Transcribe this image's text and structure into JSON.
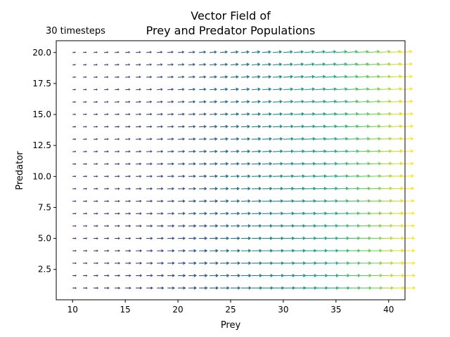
{
  "chart_data": {
    "type": "quiver",
    "title": "Vector Field of\nPrey and Predator Populations",
    "title_lines": [
      "Vector Field of",
      "Prey and Predator Populations"
    ],
    "annotation": "30 timesteps",
    "xlabel": "Prey",
    "ylabel": "Predator",
    "xlim": [
      8.45,
      41.55
    ],
    "ylim": [
      0.05,
      20.95
    ],
    "xticks": [
      10,
      15,
      20,
      25,
      30,
      35,
      40
    ],
    "xtick_labels": [
      "10",
      "15",
      "20",
      "25",
      "30",
      "35",
      "40"
    ],
    "yticks": [
      2.5,
      5.0,
      7.5,
      10.0,
      12.5,
      15.0,
      17.5,
      20.0
    ],
    "ytick_labels": [
      "2.5",
      "5.0",
      "7.5",
      "10.0",
      "12.5",
      "15.0",
      "17.5",
      "20.0"
    ],
    "grid": false,
    "legend": "none",
    "colormap": "viridis",
    "x_grid": {
      "start": 10,
      "stop": 41,
      "step": 1
    },
    "y_grid": {
      "start": 1,
      "stop": 20,
      "step": 1
    },
    "arrow_direction_model": {
      "angle_deg_at_prey_10": 0,
      "angle_deg_at_prey_41": 26,
      "note_predator": "angle grows with predator value"
    },
    "color_scale": {
      "low": "#3b528b",
      "mid": "#21918c",
      "high": "#fde725"
    }
  }
}
